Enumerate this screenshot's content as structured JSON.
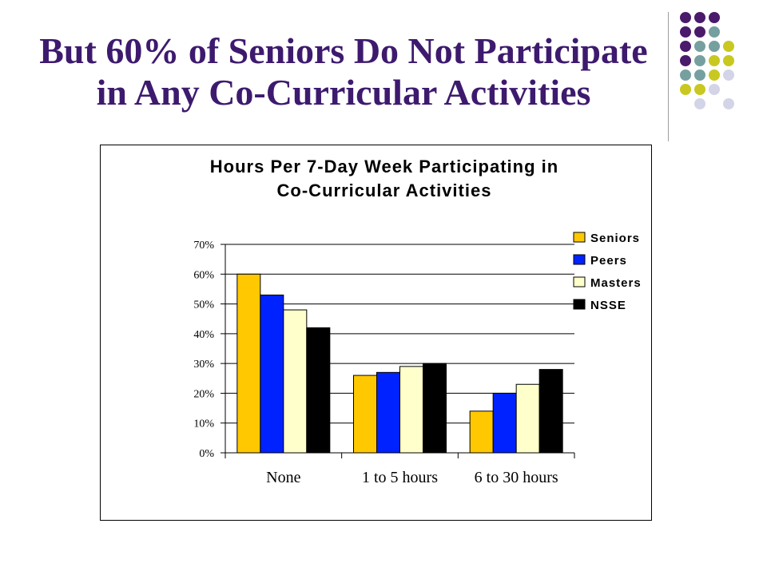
{
  "slide": {
    "title_line1": "But 60% of Seniors Do Not Participate",
    "title_line2": "in Any Co-Curricular Activities"
  },
  "decoration": {
    "dot_colors": {
      "purple": "#4a1a6b",
      "teal": "#76a0a0",
      "olive": "#c8c821",
      "lavender": "#d4d4e8"
    },
    "dot_grid": [
      [
        "purple",
        "purple",
        "purple",
        ""
      ],
      [
        "purple",
        "purple",
        "teal",
        ""
      ],
      [
        "purple",
        "teal",
        "teal",
        "olive"
      ],
      [
        "purple",
        "teal",
        "olive",
        "olive"
      ],
      [
        "teal",
        "teal",
        "olive",
        "lavender"
      ],
      [
        "olive",
        "olive",
        "lavender",
        ""
      ],
      [
        "",
        "lavender",
        "",
        "lavender"
      ]
    ]
  },
  "chart_data": {
    "type": "bar",
    "title_line1": "Hours Per 7-Day Week Participating in",
    "title_line2": "Co-Curricular Activities",
    "categories": [
      "None",
      "1 to 5 hours",
      "6 to 30 hours"
    ],
    "series": [
      {
        "name": "Seniors",
        "color": "#ffc800",
        "values": [
          0.6,
          0.26,
          0.14
        ]
      },
      {
        "name": "Peers",
        "color": "#0022ff",
        "values": [
          0.53,
          0.27,
          0.2
        ]
      },
      {
        "name": "Masters",
        "color": "#ffffcc",
        "values": [
          0.48,
          0.29,
          0.23
        ]
      },
      {
        "name": "NSSE",
        "color": "#000000",
        "values": [
          0.42,
          0.3,
          0.28
        ]
      }
    ],
    "yticks": [
      "0%",
      "10%",
      "20%",
      "30%",
      "40%",
      "50%",
      "60%",
      "70%"
    ],
    "ylim": [
      0,
      0.7
    ],
    "grid": true,
    "legend_position": "right"
  }
}
